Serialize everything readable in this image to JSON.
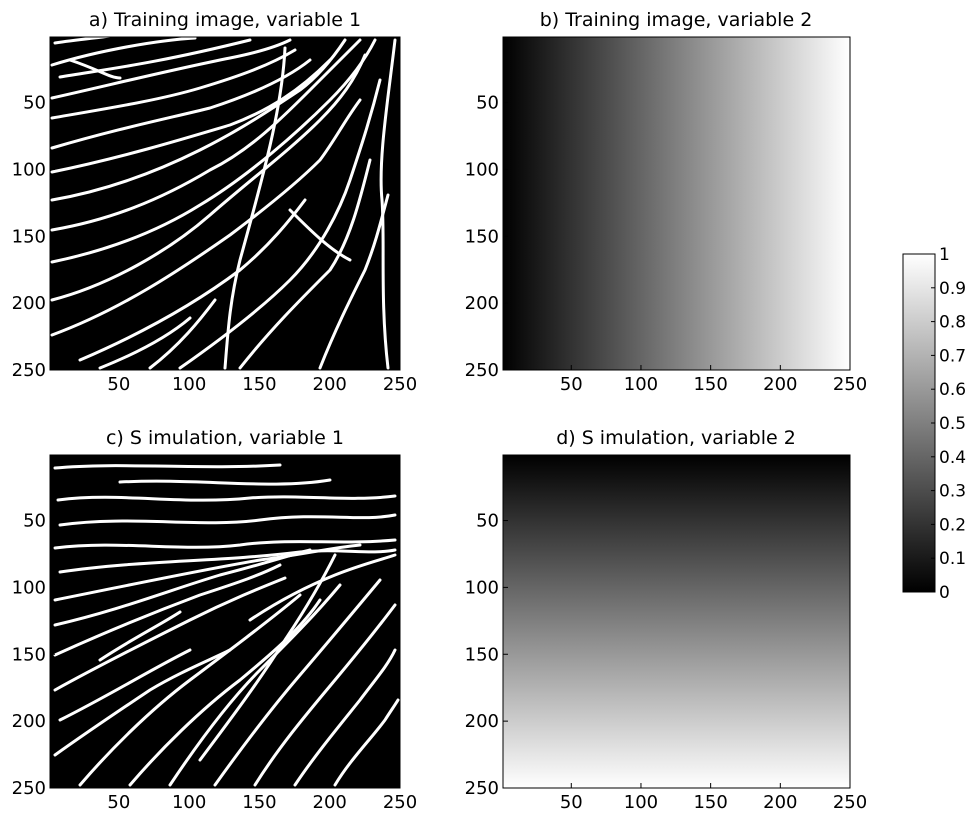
{
  "chart_data": [
    {
      "type": "heatmap",
      "title": "a) Training image, variable 1",
      "content": "binary white channel network on black background",
      "x_ticks": [
        50,
        100,
        150,
        200,
        250
      ],
      "y_ticks": [
        50,
        100,
        150,
        200,
        250
      ],
      "xlim": [
        1,
        250
      ],
      "ylim": [
        1,
        250
      ],
      "y_direction": "down",
      "values_range": [
        0,
        1
      ],
      "colormap": "gray"
    },
    {
      "type": "heatmap",
      "title": "b) Training image, variable 2",
      "content": "linear gradient from 0 at left to 1 at right",
      "gradient": {
        "direction": "horizontal",
        "from": 0,
        "to": 1
      },
      "x_ticks": [
        50,
        100,
        150,
        200,
        250
      ],
      "y_ticks": [
        50,
        100,
        150,
        200,
        250
      ],
      "xlim": [
        1,
        250
      ],
      "ylim": [
        1,
        250
      ],
      "y_direction": "down",
      "colormap": "gray"
    },
    {
      "type": "heatmap",
      "title": "c) S imulation, variable 1",
      "content": "binary white channel network on black background",
      "x_ticks": [
        50,
        100,
        150,
        200,
        250
      ],
      "y_ticks": [
        50,
        100,
        150,
        200,
        250
      ],
      "xlim": [
        1,
        250
      ],
      "ylim": [
        1,
        250
      ],
      "y_direction": "down",
      "values_range": [
        0,
        1
      ],
      "colormap": "gray"
    },
    {
      "type": "heatmap",
      "title": "d) S imulation, variable 2",
      "content": "linear gradient from 0 at top to 1 at bottom",
      "gradient": {
        "direction": "vertical",
        "from": 0,
        "to": 1
      },
      "x_ticks": [
        50,
        100,
        150,
        200,
        250
      ],
      "y_ticks": [
        50,
        100,
        150,
        200,
        250
      ],
      "xlim": [
        1,
        250
      ],
      "ylim": [
        1,
        250
      ],
      "y_direction": "down",
      "colormap": "gray"
    }
  ],
  "colorbar": {
    "ticks": [
      0,
      0.1,
      0.2,
      0.3,
      0.4,
      0.5,
      0.6,
      0.7,
      0.8,
      0.9,
      1
    ],
    "tick_labels": [
      "0",
      "0.1",
      "0.2",
      "0.3",
      "0.4",
      "0.5",
      "0.6",
      "0.7",
      "0.8",
      "0.9",
      "1"
    ],
    "range": [
      0,
      1
    ],
    "colormap": "gray"
  }
}
